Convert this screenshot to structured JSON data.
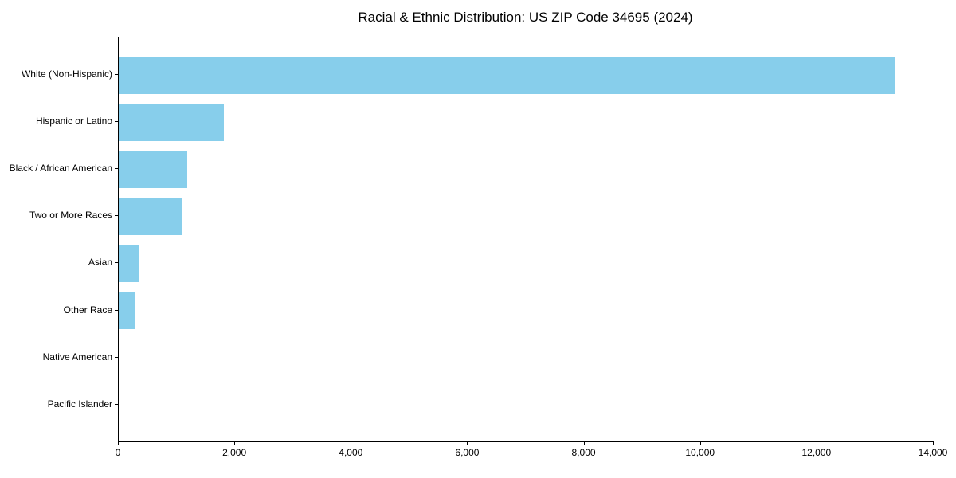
{
  "chart_data": {
    "type": "bar",
    "orientation": "horizontal",
    "title": "Racial & Ethnic Distribution: US ZIP Code 34695 (2024)",
    "categories": [
      "White (Non-Hispanic)",
      "Hispanic or Latino",
      "Black / African American",
      "Two or More Races",
      "Asian",
      "Other Race",
      "Native American",
      "Pacific Islander"
    ],
    "values": [
      13340,
      1810,
      1180,
      1100,
      360,
      290,
      0,
      0
    ],
    "xlabel": "",
    "ylabel": "",
    "xlim": [
      0,
      14000
    ],
    "xticks": [
      0,
      2000,
      4000,
      6000,
      8000,
      10000,
      12000,
      14000
    ],
    "grid": false,
    "legend": "none",
    "bar_color": "#87CEEB",
    "axis_color": "#000000",
    "text_color": "#000000",
    "background_color": "#ffffff"
  }
}
